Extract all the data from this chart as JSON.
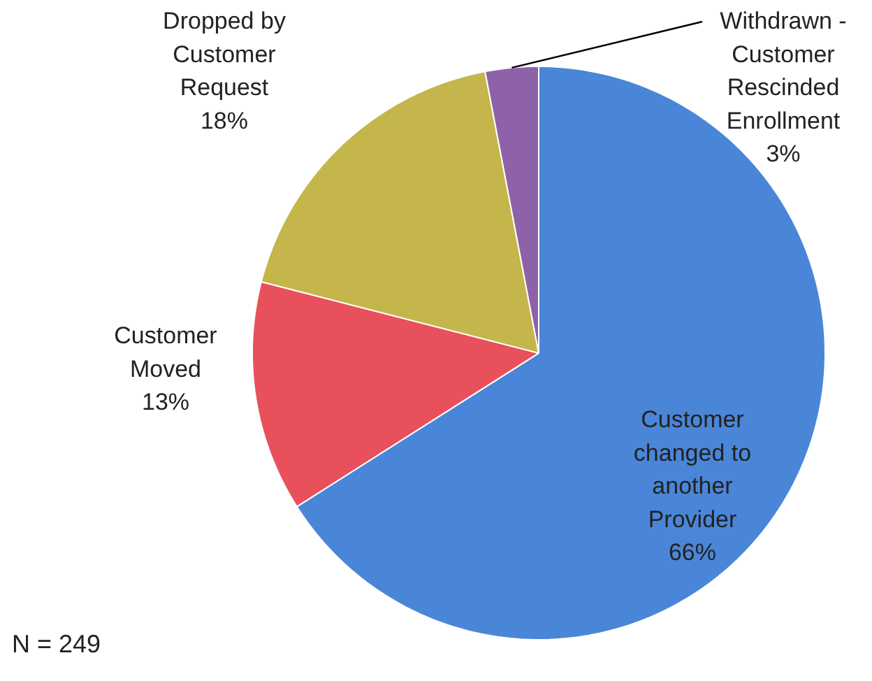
{
  "chart_data": {
    "type": "pie",
    "categories": [
      "Customer\nchanged to\nanother\nProvider",
      "Customer\nMoved",
      "Dropped by\nCustomer\nRequest",
      "Withdrawn -\nCustomer\nRescinded\nEnrollment"
    ],
    "values": [
      66,
      13,
      18,
      3
    ],
    "value_labels": [
      "66%",
      "13%",
      "18%",
      "3%"
    ],
    "colors": [
      "#4a86d8",
      "#e8505b",
      "#c4b64a",
      "#8e62a8"
    ],
    "annotations": [
      "N = 249"
    ]
  }
}
